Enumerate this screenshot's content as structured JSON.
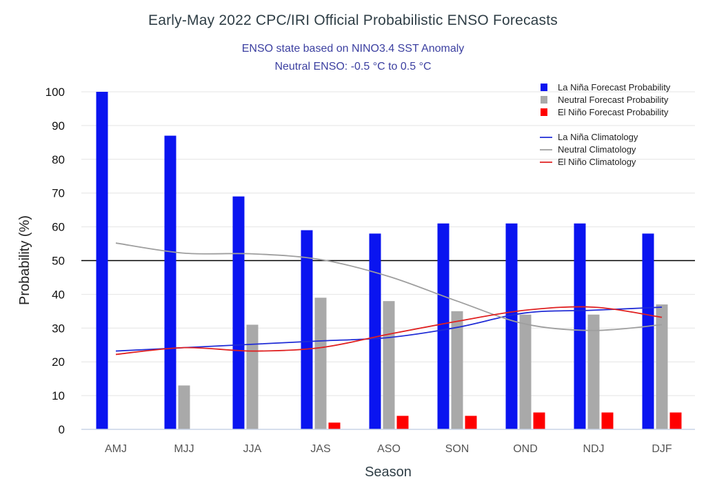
{
  "chart_data": {
    "type": "bar",
    "title": "Early-May 2022 CPC/IRI Official Probabilistic ENSO Forecasts",
    "subtitle_line1": "ENSO state based on NINO3.4 SST Anomaly",
    "subtitle_line2": "Neutral ENSO: -0.5 °C to 0.5 °C",
    "xlabel": "Season",
    "ylabel": "Probability (%)",
    "ylim": [
      0,
      100
    ],
    "yticks": [
      0,
      10,
      20,
      30,
      40,
      50,
      60,
      70,
      80,
      90,
      100
    ],
    "reference_line": 50,
    "grid": true,
    "legend_position": "top-right",
    "categories": [
      "AMJ",
      "MJJ",
      "JJA",
      "JAS",
      "ASO",
      "SON",
      "OND",
      "NDJ",
      "DJF"
    ],
    "series": [
      {
        "name": "La Niña Forecast Probability",
        "color": "#0a14f0",
        "values": [
          100,
          87,
          69,
          59,
          58,
          61,
          61,
          61,
          58
        ]
      },
      {
        "name": "Neutral Forecast Probability",
        "color": "#a9a9a9",
        "values": [
          0,
          13,
          31,
          39,
          38,
          35,
          34,
          34,
          37
        ]
      },
      {
        "name": "El Niño Forecast Probability",
        "color": "#ff0000",
        "values": [
          0,
          0,
          0,
          2,
          4,
          4,
          5,
          5,
          5
        ]
      }
    ],
    "lines": [
      {
        "name": "La Niña Climatology",
        "color": "#1f2bd6",
        "values": [
          23.2,
          24.2,
          25.2,
          26.2,
          27.2,
          30.2,
          34.5,
          35.3,
          36.2
        ]
      },
      {
        "name": "Neutral Climatology",
        "color": "#9e9e9e",
        "values": [
          55.2,
          52.2,
          52.0,
          50.3,
          45.3,
          38.0,
          31.2,
          29.3,
          31.0
        ]
      },
      {
        "name": "El Niño Climatology",
        "color": "#e02020",
        "values": [
          22.2,
          24.2,
          23.2,
          24.2,
          28.2,
          32.0,
          35.3,
          36.2,
          33.2
        ]
      }
    ]
  }
}
